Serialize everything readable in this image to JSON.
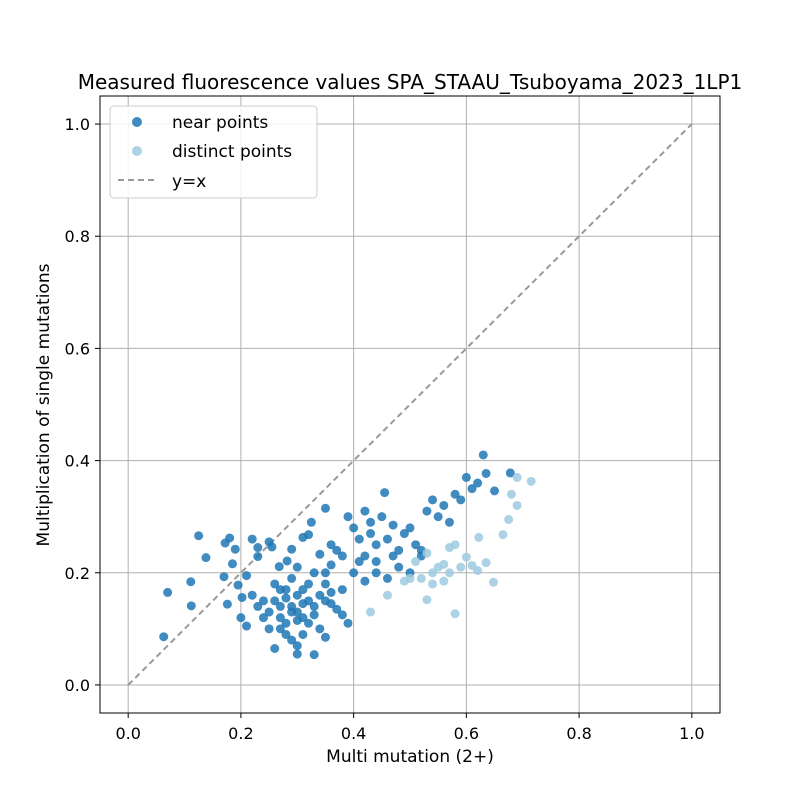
{
  "chart_data": {
    "type": "scatter",
    "title": "Measured fluorescence values SPA_STAAU_Tsuboyama_2023_1LP1",
    "xlabel": "Multi mutation (2+)",
    "ylabel": "Multiplication of single mutations",
    "xlim": [
      -0.05,
      1.05
    ],
    "ylim": [
      -0.05,
      1.05
    ],
    "xticks": [
      "0.0",
      "0.2",
      "0.4",
      "0.6",
      "0.8",
      "1.0"
    ],
    "yticks": [
      "0.0",
      "0.2",
      "0.4",
      "0.6",
      "0.8",
      "1.0"
    ],
    "grid": true,
    "legend_position": "top-left",
    "series": [
      {
        "name": "near points",
        "color": "#1f77b4",
        "values": [
          [
            0.063,
            0.086
          ],
          [
            0.07,
            0.165
          ],
          [
            0.111,
            0.184
          ],
          [
            0.112,
            0.141
          ],
          [
            0.125,
            0.266
          ],
          [
            0.138,
            0.227
          ],
          [
            0.17,
            0.193
          ],
          [
            0.172,
            0.253
          ],
          [
            0.176,
            0.144
          ],
          [
            0.18,
            0.262
          ],
          [
            0.185,
            0.216
          ],
          [
            0.19,
            0.242
          ],
          [
            0.195,
            0.178
          ],
          [
            0.2,
            0.12
          ],
          [
            0.202,
            0.156
          ],
          [
            0.21,
            0.195
          ],
          [
            0.22,
            0.26
          ],
          [
            0.23,
            0.229
          ],
          [
            0.25,
            0.255
          ],
          [
            0.255,
            0.246
          ],
          [
            0.268,
            0.211
          ],
          [
            0.282,
            0.221
          ],
          [
            0.29,
            0.242
          ],
          [
            0.3,
            0.21
          ],
          [
            0.31,
            0.263
          ],
          [
            0.32,
            0.268
          ],
          [
            0.33,
            0.2
          ],
          [
            0.34,
            0.233
          ],
          [
            0.35,
            0.18
          ],
          [
            0.36,
            0.214
          ],
          [
            0.36,
            0.25
          ],
          [
            0.37,
            0.24
          ],
          [
            0.38,
            0.23
          ],
          [
            0.39,
            0.3
          ],
          [
            0.4,
            0.28
          ],
          [
            0.41,
            0.26
          ],
          [
            0.42,
            0.31
          ],
          [
            0.43,
            0.29
          ],
          [
            0.44,
            0.25
          ],
          [
            0.45,
            0.3
          ],
          [
            0.46,
            0.26
          ],
          [
            0.47,
            0.285
          ],
          [
            0.48,
            0.24
          ],
          [
            0.49,
            0.27
          ],
          [
            0.5,
            0.28
          ],
          [
            0.51,
            0.25
          ],
          [
            0.52,
            0.24
          ],
          [
            0.53,
            0.31
          ],
          [
            0.54,
            0.33
          ],
          [
            0.55,
            0.3
          ],
          [
            0.56,
            0.32
          ],
          [
            0.57,
            0.29
          ],
          [
            0.58,
            0.34
          ],
          [
            0.59,
            0.33
          ],
          [
            0.6,
            0.37
          ],
          [
            0.61,
            0.35
          ],
          [
            0.62,
            0.36
          ],
          [
            0.63,
            0.41
          ],
          [
            0.635,
            0.377
          ],
          [
            0.65,
            0.346
          ],
          [
            0.678,
            0.378
          ],
          [
            0.455,
            0.343
          ],
          [
            0.35,
            0.315
          ],
          [
            0.325,
            0.29
          ],
          [
            0.23,
            0.245
          ],
          [
            0.26,
            0.18
          ],
          [
            0.27,
            0.17
          ],
          [
            0.28,
            0.155
          ],
          [
            0.29,
            0.14
          ],
          [
            0.3,
            0.13
          ],
          [
            0.31,
            0.12
          ],
          [
            0.32,
            0.11
          ],
          [
            0.27,
            0.1
          ],
          [
            0.28,
            0.09
          ],
          [
            0.29,
            0.08
          ],
          [
            0.3,
            0.07
          ],
          [
            0.26,
            0.065
          ],
          [
            0.3,
            0.055
          ],
          [
            0.33,
            0.054
          ],
          [
            0.35,
            0.085
          ],
          [
            0.25,
            0.13
          ],
          [
            0.24,
            0.12
          ],
          [
            0.23,
            0.14
          ],
          [
            0.22,
            0.16
          ],
          [
            0.21,
            0.105
          ],
          [
            0.34,
            0.16
          ],
          [
            0.36,
            0.145
          ],
          [
            0.38,
            0.17
          ],
          [
            0.4,
            0.2
          ],
          [
            0.42,
            0.185
          ],
          [
            0.44,
            0.2
          ],
          [
            0.46,
            0.19
          ],
          [
            0.48,
            0.21
          ],
          [
            0.5,
            0.2
          ],
          [
            0.52,
            0.23
          ],
          [
            0.38,
            0.125
          ],
          [
            0.39,
            0.11
          ],
          [
            0.34,
            0.1
          ],
          [
            0.31,
            0.09
          ],
          [
            0.27,
            0.12
          ],
          [
            0.33,
            0.14
          ],
          [
            0.3,
            0.16
          ],
          [
            0.28,
            0.17
          ],
          [
            0.32,
            0.18
          ],
          [
            0.35,
            0.2
          ],
          [
            0.42,
            0.23
          ],
          [
            0.44,
            0.22
          ],
          [
            0.47,
            0.23
          ],
          [
            0.43,
            0.27
          ],
          [
            0.41,
            0.22
          ],
          [
            0.29,
            0.13
          ],
          [
            0.3,
            0.115
          ],
          [
            0.31,
            0.145
          ],
          [
            0.32,
            0.15
          ],
          [
            0.33,
            0.125
          ],
          [
            0.26,
            0.15
          ],
          [
            0.27,
            0.14
          ],
          [
            0.28,
            0.11
          ],
          [
            0.25,
            0.1
          ],
          [
            0.24,
            0.15
          ],
          [
            0.36,
            0.165
          ],
          [
            0.37,
            0.135
          ],
          [
            0.35,
            0.15
          ],
          [
            0.29,
            0.19
          ],
          [
            0.31,
            0.17
          ]
        ]
      },
      {
        "name": "distinct points",
        "color": "#9ecae1",
        "values": [
          [
            0.43,
            0.13
          ],
          [
            0.46,
            0.16
          ],
          [
            0.49,
            0.185
          ],
          [
            0.5,
            0.19
          ],
          [
            0.51,
            0.22
          ],
          [
            0.52,
            0.19
          ],
          [
            0.53,
            0.152
          ],
          [
            0.53,
            0.235
          ],
          [
            0.54,
            0.18
          ],
          [
            0.55,
            0.21
          ],
          [
            0.56,
            0.185
          ],
          [
            0.57,
            0.2
          ],
          [
            0.58,
            0.127
          ],
          [
            0.58,
            0.25
          ],
          [
            0.59,
            0.21
          ],
          [
            0.61,
            0.213
          ],
          [
            0.62,
            0.204
          ],
          [
            0.622,
            0.263
          ],
          [
            0.635,
            0.218
          ],
          [
            0.648,
            0.183
          ],
          [
            0.665,
            0.268
          ],
          [
            0.675,
            0.295
          ],
          [
            0.68,
            0.34
          ],
          [
            0.69,
            0.32
          ],
          [
            0.69,
            0.37
          ],
          [
            0.715,
            0.363
          ],
          [
            0.57,
            0.245
          ],
          [
            0.6,
            0.228
          ],
          [
            0.54,
            0.2
          ],
          [
            0.56,
            0.215
          ]
        ]
      }
    ],
    "reference_line": {
      "name": "y=x",
      "from": [
        0,
        0
      ],
      "to": [
        1,
        1
      ],
      "color": "#999999"
    }
  }
}
